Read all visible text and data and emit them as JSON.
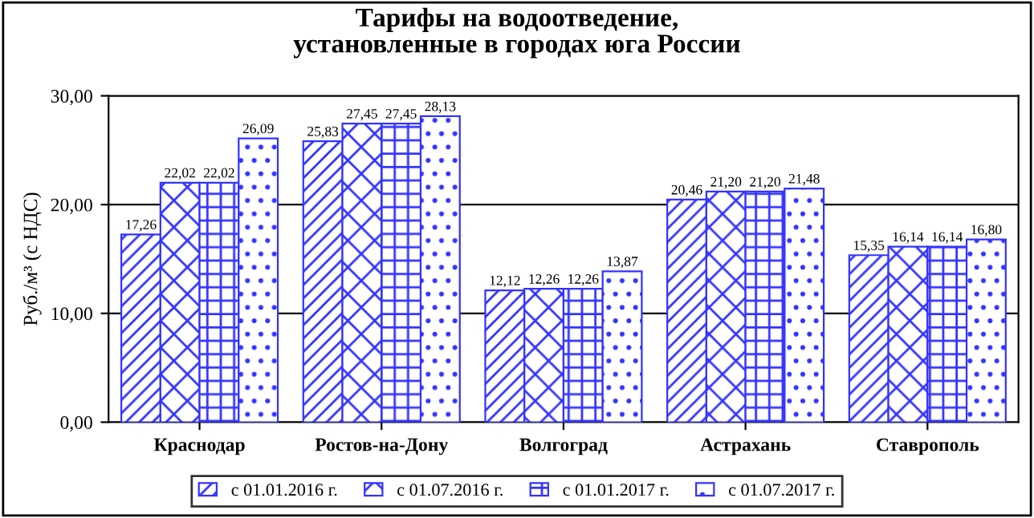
{
  "chart_data": {
    "type": "bar",
    "title": "Тарифы на водоотведение,\nустановленные в городах юга России",
    "ylabel": "Руб./м³ (с НДС)",
    "categories": [
      "Краснодар",
      "Ростов-на-Дону",
      "Волгоград",
      "Астрахань",
      "Ставрополь"
    ],
    "series": [
      {
        "name": "с 01.01.2016 г.",
        "color": "#3333ff",
        "values": [
          17.26,
          25.83,
          12.12,
          20.46,
          15.35
        ],
        "value_labels": [
          "17,26",
          "25,83",
          "12,12",
          "20,46",
          "15,35"
        ]
      },
      {
        "name": "с 01.07.2016 г.",
        "color": "#3333ff",
        "values": [
          22.02,
          27.45,
          12.26,
          21.2,
          16.14
        ],
        "value_labels": [
          "22,02",
          "27,45",
          "12,26",
          "21,20",
          "16,14"
        ]
      },
      {
        "name": "с 01.01.2017 г.",
        "color": "#3333ff",
        "values": [
          22.02,
          27.45,
          12.26,
          21.2,
          16.14
        ],
        "value_labels": [
          "22,02",
          "27,45",
          "12,26",
          "21,20",
          "16,14"
        ]
      },
      {
        "name": "с 01.07.2017 г.",
        "color": "#3333ff",
        "values": [
          26.09,
          28.13,
          13.87,
          21.48,
          16.8
        ],
        "value_labels": [
          "26,09",
          "28,13",
          "13,87",
          "21,48",
          "16,80"
        ]
      }
    ],
    "ylim": [
      0,
      30
    ],
    "yticks": [
      {
        "value": 0,
        "label": "0,00"
      },
      {
        "value": 10,
        "label": "10,00"
      },
      {
        "value": 20,
        "label": "20,00"
      },
      {
        "value": 30,
        "label": "30,00"
      }
    ],
    "grid": "y",
    "legend": "bottom"
  }
}
